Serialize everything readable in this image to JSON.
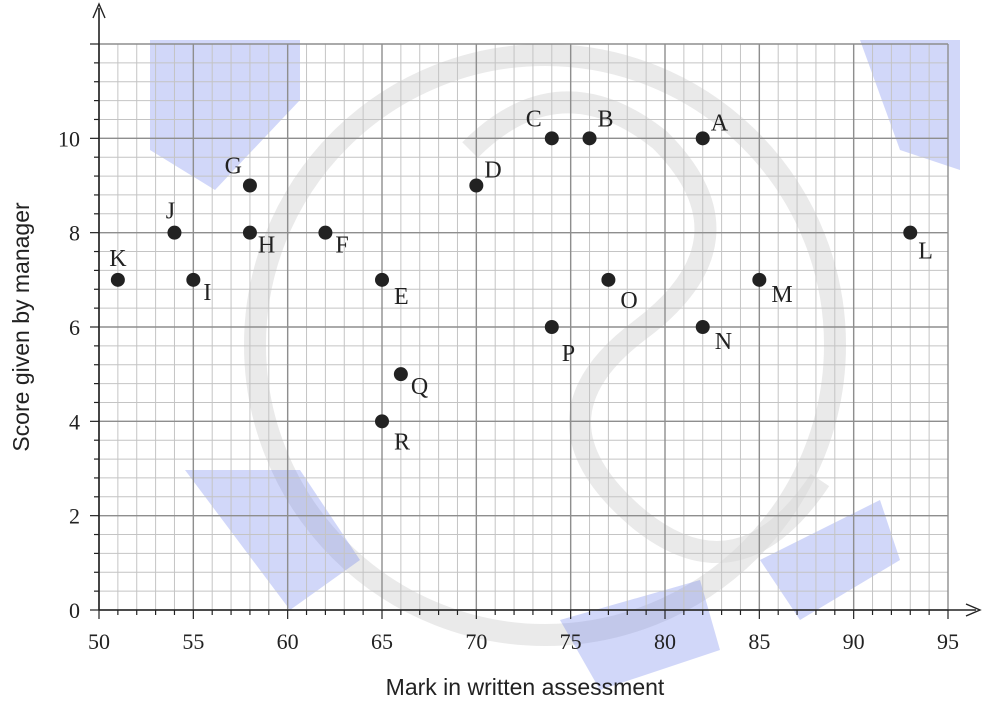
{
  "chart_data": {
    "type": "scatter",
    "xlabel": "Mark in written assessment",
    "ylabel": "Score given by manager",
    "xlim": [
      50,
      95
    ],
    "ylim": [
      0,
      12
    ],
    "x_ticks": [
      "50",
      "55",
      "60",
      "65",
      "70",
      "75",
      "80",
      "85",
      "90",
      "95"
    ],
    "y_ticks": [
      "0",
      "2",
      "4",
      "6",
      "8",
      "10"
    ],
    "grid": true,
    "point_color": "#222222",
    "points": [
      {
        "label": "A",
        "x": 82,
        "y": 10
      },
      {
        "label": "B",
        "x": 76,
        "y": 10
      },
      {
        "label": "C",
        "x": 74,
        "y": 10
      },
      {
        "label": "D",
        "x": 70,
        "y": 9
      },
      {
        "label": "E",
        "x": 65,
        "y": 7
      },
      {
        "label": "F",
        "x": 62,
        "y": 8
      },
      {
        "label": "G",
        "x": 58,
        "y": 9
      },
      {
        "label": "H",
        "x": 58,
        "y": 8
      },
      {
        "label": "I",
        "x": 55,
        "y": 7
      },
      {
        "label": "J",
        "x": 54,
        "y": 8
      },
      {
        "label": "K",
        "x": 51,
        "y": 7
      },
      {
        "label": "L",
        "x": 93,
        "y": 8
      },
      {
        "label": "M",
        "x": 85,
        "y": 7
      },
      {
        "label": "N",
        "x": 82,
        "y": 6
      },
      {
        "label": "O",
        "x": 77,
        "y": 7
      },
      {
        "label": "P",
        "x": 74,
        "y": 6
      },
      {
        "label": "Q",
        "x": 66,
        "y": 5
      },
      {
        "label": "R",
        "x": 65,
        "y": 4
      }
    ]
  }
}
